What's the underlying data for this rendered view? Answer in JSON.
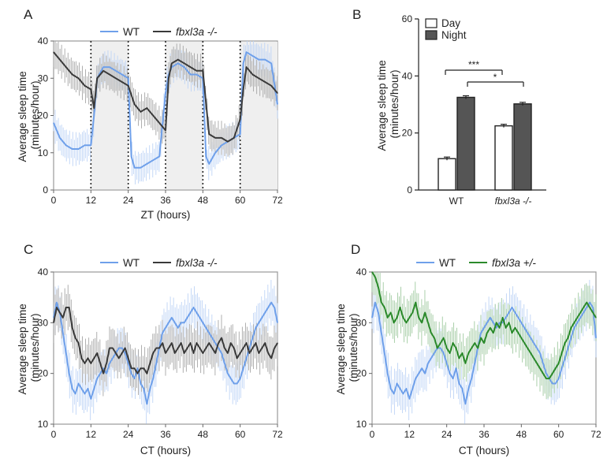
{
  "chart_data": [
    {
      "panel": "A",
      "type": "line",
      "xlabel": "ZT (hours)",
      "ylabel": "Average sleep time (minutes/hour)",
      "xlim": [
        0,
        72
      ],
      "ylim": [
        0,
        40
      ],
      "xticks": [
        0,
        12,
        24,
        36,
        48,
        60,
        72
      ],
      "yticks": [
        0,
        10,
        20,
        30,
        40
      ],
      "night_shading": [
        [
          12,
          24
        ],
        [
          36,
          48
        ],
        [
          60,
          72
        ]
      ],
      "dotted_lines": [
        12,
        24,
        36,
        48,
        60
      ],
      "legend": "top",
      "series": [
        {
          "name": "WT",
          "color": "#6fa0ea",
          "x": [
            0,
            2,
            4,
            6,
            8,
            10,
            12,
            13,
            14,
            16,
            18,
            20,
            22,
            24,
            25,
            26,
            28,
            30,
            32,
            34,
            36,
            37,
            38,
            40,
            42,
            44,
            46,
            48,
            49,
            50,
            52,
            54,
            56,
            58,
            60,
            61,
            62,
            64,
            66,
            68,
            70,
            72
          ],
          "y": [
            18,
            14,
            12,
            11,
            11,
            12,
            12,
            20,
            30,
            33,
            33,
            32,
            31,
            30,
            9,
            6,
            6,
            7,
            8,
            9,
            26,
            31,
            33,
            34,
            33,
            31,
            31,
            30,
            9,
            7,
            10,
            12,
            13,
            14,
            15,
            34,
            37,
            36,
            35,
            35,
            34,
            23
          ]
        },
        {
          "name": "fbxl3a -/-",
          "color": "#3a3a3a",
          "x": [
            0,
            2,
            4,
            6,
            8,
            10,
            12,
            13,
            14,
            16,
            18,
            20,
            22,
            24,
            26,
            28,
            30,
            32,
            34,
            36,
            37,
            38,
            40,
            42,
            44,
            46,
            48,
            50,
            52,
            54,
            56,
            58,
            60,
            61,
            62,
            64,
            66,
            68,
            70,
            72
          ],
          "y": [
            37,
            35,
            33,
            31,
            30,
            28,
            27,
            22,
            30,
            32,
            31,
            30,
            29,
            28,
            23,
            21,
            22,
            20,
            18,
            16,
            30,
            34,
            35,
            34,
            33,
            32,
            32,
            15,
            14,
            14,
            13,
            14,
            19,
            27,
            33,
            31,
            30,
            29,
            28,
            26
          ]
        }
      ]
    },
    {
      "panel": "B",
      "type": "bar",
      "ylabel": "Average sleep time (minutes/hour)",
      "ylim": [
        0,
        60
      ],
      "yticks": [
        0,
        20,
        40,
        60
      ],
      "categories": [
        "WT",
        "fbxl3a -/-"
      ],
      "legend": "top",
      "series": [
        {
          "name": "Day",
          "color": "#ffffff",
          "values": [
            11,
            22.5
          ]
        },
        {
          "name": "Night",
          "color": "#555555",
          "values": [
            32.5,
            30.2
          ]
        }
      ],
      "significance": [
        "***",
        "*"
      ]
    },
    {
      "panel": "C",
      "type": "line",
      "xlabel": "CT (hours)",
      "ylabel": "Average sleep time (minutes/hour)",
      "xlim": [
        0,
        72
      ],
      "ylim": [
        10,
        40
      ],
      "xticks": [
        0,
        12,
        24,
        36,
        48,
        60,
        72
      ],
      "yticks": [
        10,
        20,
        30,
        40
      ],
      "legend": "top",
      "series": [
        {
          "name": "WT",
          "color": "#6fa0ea",
          "x": [
            0,
            1,
            2,
            3,
            4,
            5,
            6,
            7,
            8,
            9,
            10,
            11,
            12,
            13,
            14,
            15,
            16,
            17,
            18,
            19,
            20,
            21,
            22,
            23,
            24,
            25,
            26,
            27,
            28,
            29,
            30,
            31,
            32,
            33,
            34,
            35,
            36,
            37,
            38,
            39,
            40,
            41,
            42,
            43,
            44,
            45,
            46,
            47,
            48,
            49,
            50,
            51,
            52,
            53,
            54,
            55,
            56,
            57,
            58,
            59,
            60,
            61,
            62,
            63,
            64,
            65,
            66,
            67,
            68,
            69,
            70,
            71,
            72
          ],
          "y": [
            31,
            34,
            32,
            28,
            24,
            20,
            17,
            16,
            18,
            17,
            16,
            17,
            15,
            17,
            19,
            20,
            21,
            20,
            22,
            23,
            24,
            25,
            25,
            24,
            22,
            20,
            19,
            21,
            18,
            17,
            14,
            17,
            19,
            22,
            25,
            28,
            29,
            30,
            31,
            30,
            29,
            30,
            30,
            31,
            32,
            33,
            32,
            31,
            30,
            29,
            28,
            27,
            26,
            25,
            24,
            22,
            20,
            19,
            18,
            18,
            19,
            21,
            23,
            25,
            27,
            29,
            30,
            31,
            32,
            33,
            34,
            33,
            30
          ]
        },
        {
          "name": "fbxl3a -/-",
          "color": "#3a3a3a",
          "x": [
            0,
            1,
            2,
            3,
            4,
            5,
            6,
            7,
            8,
            9,
            10,
            11,
            12,
            13,
            14,
            15,
            16,
            17,
            18,
            19,
            20,
            21,
            22,
            23,
            24,
            25,
            26,
            27,
            28,
            29,
            30,
            31,
            32,
            33,
            34,
            35,
            36,
            37,
            38,
            39,
            40,
            41,
            42,
            43,
            44,
            45,
            46,
            47,
            48,
            49,
            50,
            51,
            52,
            53,
            54,
            55,
            56,
            57,
            58,
            59,
            60,
            61,
            62,
            63,
            64,
            65,
            66,
            67,
            68,
            69,
            70,
            71,
            72
          ],
          "y": [
            30,
            33,
            32,
            31,
            33,
            33,
            29,
            27,
            26,
            23,
            22,
            23,
            22,
            23,
            24,
            22,
            20,
            22,
            25,
            25,
            24,
            23,
            24,
            25,
            23,
            21,
            21,
            20,
            21,
            21,
            20,
            22,
            24,
            25,
            25,
            26,
            24,
            25,
            26,
            24,
            25,
            26,
            24,
            25,
            26,
            24,
            26,
            25,
            24,
            25,
            26,
            25,
            24,
            26,
            27,
            25,
            24,
            26,
            25,
            23,
            24,
            25,
            26,
            24,
            25,
            26,
            24,
            25,
            26,
            24,
            23,
            25,
            26
          ]
        }
      ]
    },
    {
      "panel": "D",
      "type": "line",
      "xlabel": "CT (hours)",
      "ylabel": "Average sleep time (minutes/hour)",
      "xlim": [
        0,
        72
      ],
      "ylim": [
        10,
        40
      ],
      "xticks": [
        0,
        12,
        24,
        36,
        48,
        60,
        72
      ],
      "yticks": [
        10,
        20,
        30,
        40
      ],
      "legend": "top",
      "series": [
        {
          "name": "WT",
          "color": "#6fa0ea",
          "x": [
            0,
            1,
            2,
            3,
            4,
            5,
            6,
            7,
            8,
            9,
            10,
            11,
            12,
            13,
            14,
            15,
            16,
            17,
            18,
            19,
            20,
            21,
            22,
            23,
            24,
            25,
            26,
            27,
            28,
            29,
            30,
            31,
            32,
            33,
            34,
            35,
            36,
            37,
            38,
            39,
            40,
            41,
            42,
            43,
            44,
            45,
            46,
            47,
            48,
            49,
            50,
            51,
            52,
            53,
            54,
            55,
            56,
            57,
            58,
            59,
            60,
            61,
            62,
            63,
            64,
            65,
            66,
            67,
            68,
            69,
            70,
            71,
            72
          ],
          "y": [
            31,
            34,
            32,
            28,
            24,
            20,
            17,
            16,
            18,
            17,
            16,
            17,
            15,
            17,
            19,
            20,
            21,
            20,
            22,
            23,
            24,
            25,
            25,
            24,
            22,
            20,
            19,
            21,
            18,
            17,
            14,
            17,
            19,
            22,
            25,
            28,
            29,
            30,
            31,
            30,
            29,
            30,
            30,
            31,
            32,
            33,
            32,
            31,
            30,
            29,
            28,
            27,
            26,
            25,
            24,
            22,
            20,
            19,
            18,
            18,
            19,
            21,
            23,
            25,
            27,
            29,
            30,
            31,
            32,
            33,
            34,
            33,
            27
          ]
        },
        {
          "name": "fbxl3a +/-",
          "color": "#2b8a2b",
          "x": [
            0,
            1,
            2,
            3,
            4,
            5,
            6,
            7,
            8,
            9,
            10,
            11,
            12,
            13,
            14,
            15,
            16,
            17,
            18,
            19,
            20,
            21,
            22,
            23,
            24,
            25,
            26,
            27,
            28,
            29,
            30,
            31,
            32,
            33,
            34,
            35,
            36,
            37,
            38,
            39,
            40,
            41,
            42,
            43,
            44,
            45,
            46,
            47,
            48,
            49,
            50,
            51,
            52,
            53,
            54,
            55,
            56,
            57,
            58,
            59,
            60,
            61,
            62,
            63,
            64,
            65,
            66,
            67,
            68,
            69,
            70,
            71,
            72
          ],
          "y": [
            40,
            39,
            37,
            34,
            33,
            31,
            32,
            30,
            31,
            33,
            31,
            30,
            31,
            32,
            34,
            31,
            30,
            32,
            30,
            28,
            27,
            25,
            26,
            27,
            25,
            24,
            26,
            25,
            23,
            24,
            22,
            24,
            25,
            26,
            25,
            27,
            26,
            28,
            29,
            28,
            30,
            29,
            31,
            29,
            30,
            28,
            29,
            28,
            27,
            26,
            25,
            24,
            23,
            22,
            21,
            20,
            19,
            19,
            20,
            21,
            22,
            24,
            26,
            27,
            29,
            30,
            31,
            32,
            33,
            34,
            33,
            32,
            31
          ]
        }
      ]
    }
  ],
  "panels": {
    "A": {
      "label": "A",
      "legend_wt": "WT",
      "legend_mut": "fbxl3a -/-"
    },
    "B": {
      "label": "B",
      "legend_day": "Day",
      "legend_night": "Night",
      "sig1": "***",
      "sig2": "*",
      "cat1": "WT",
      "cat2": "fbxl3a -/-"
    },
    "C": {
      "label": "C",
      "legend_wt": "WT",
      "legend_mut": "fbxl3a -/-"
    },
    "D": {
      "label": "D",
      "legend_wt": "WT",
      "legend_mut": "fbxl3a +/-"
    }
  },
  "axis_text": {
    "ylabel_line1": "Average sleep time",
    "ylabel_line2": "(minutes/hour)",
    "zt_label": "ZT (hours)",
    "ct_label": "CT (hours)"
  }
}
